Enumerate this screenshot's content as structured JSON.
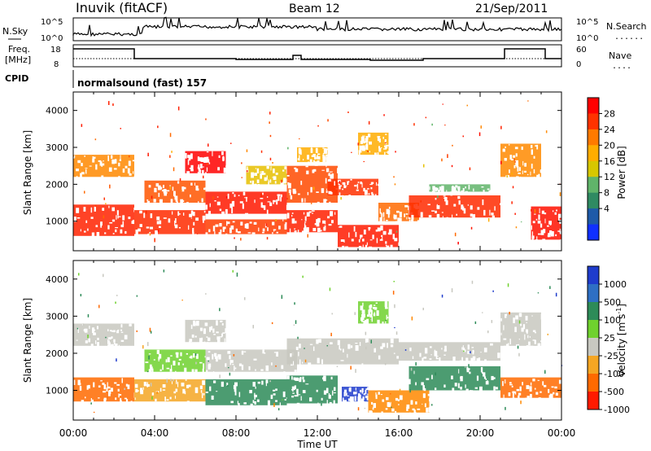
{
  "header": {
    "station": "Inuvik (fitACF)",
    "beam": "Beam 12",
    "date": "21/Sep/2011"
  },
  "strip_labels": {
    "nsky": "N.Sky",
    "nsearch": "N.Search",
    "freq_line1": "Freq.",
    "freq_line2": "[MHz]",
    "nave": "Nave",
    "cpid": "CPID",
    "cpid_value": "normalsound (fast) 157",
    "nsky_ticks": [
      "10^5",
      "10^0"
    ],
    "nsearch_ticks": [
      "10^5",
      "10^0"
    ],
    "freq_ticks": [
      "18",
      "8"
    ],
    "nave_ticks": [
      "60",
      "0"
    ],
    "dotted_legend": "......",
    "dotted_legend_short": "...."
  },
  "chart_data": [
    {
      "type": "heatmap",
      "name": "power",
      "ylabel": "Slant Range [km]",
      "yticks": [
        1000,
        2000,
        3000,
        4000
      ],
      "ylim": [
        200,
        4500
      ],
      "xlim": [
        0,
        24
      ],
      "colorbar": {
        "label": "Power [dB]",
        "ticks": [
          "28",
          "24",
          "20",
          "16",
          "12",
          "8",
          "4"
        ],
        "colors": [
          "#ff0000",
          "#ff3300",
          "#ff7a00",
          "#ffad00",
          "#d7c700",
          "#60b46a",
          "#2f8a62",
          "#1e5aa8",
          "#1030ff"
        ]
      }
    },
    {
      "type": "heatmap",
      "name": "velocity",
      "ylabel": "Slant Range [km]",
      "yticks": [
        1000,
        2000,
        3000,
        4000
      ],
      "ylim": [
        200,
        4500
      ],
      "xlim": [
        0,
        24
      ],
      "xlabel": "Time UT",
      "xticks": [
        "00:00",
        "04:00",
        "08:00",
        "12:00",
        "16:00",
        "20:00",
        "00:00"
      ],
      "colorbar": {
        "label": "Velocity [m s",
        "label_sup": "-1",
        "label_close": "]",
        "ticks": [
          "1000",
          "500",
          "100",
          "25",
          "-25",
          "-100",
          "-500",
          "-1000"
        ],
        "colors": [
          "#1f3ccc",
          "#2e6fc4",
          "#2d8b58",
          "#6fd12e",
          "#c8c8c0",
          "#f5a623",
          "#ff6a00",
          "#ff1a00"
        ]
      }
    }
  ],
  "bands": {
    "power": [
      {
        "t0": 0.0,
        "t1": 3.0,
        "r0": 600,
        "r1": 1450,
        "c": "#ff2200"
      },
      {
        "t0": 0.0,
        "t1": 3.0,
        "r0": 2200,
        "r1": 2800,
        "c": "#ff8800"
      },
      {
        "t0": 3.0,
        "t1": 6.5,
        "r0": 650,
        "r1": 1300,
        "c": "#ff2a00"
      },
      {
        "t0": 3.5,
        "t1": 6.5,
        "r0": 1500,
        "r1": 2100,
        "c": "#ff5500"
      },
      {
        "t0": 5.5,
        "t1": 7.5,
        "r0": 2300,
        "r1": 2900,
        "c": "#ff0000"
      },
      {
        "t0": 6.5,
        "t1": 10.5,
        "r0": 1200,
        "r1": 1800,
        "c": "#ff1800"
      },
      {
        "t0": 6.5,
        "t1": 10.5,
        "r0": 650,
        "r1": 1050,
        "c": "#ff3c00"
      },
      {
        "t0": 8.5,
        "t1": 10.5,
        "r0": 2000,
        "r1": 2500,
        "c": "#e6c000"
      },
      {
        "t0": 10.5,
        "t1": 13.0,
        "r0": 700,
        "r1": 1300,
        "c": "#ff2000"
      },
      {
        "t0": 10.5,
        "t1": 13.0,
        "r0": 1500,
        "r1": 2500,
        "c": "#ff4a00"
      },
      {
        "t0": 11.0,
        "t1": 12.5,
        "r0": 2600,
        "r1": 3000,
        "c": "#ffad00"
      },
      {
        "t0": 12.5,
        "t1": 15.0,
        "r0": 1700,
        "r1": 2150,
        "c": "#ff3000"
      },
      {
        "t0": 13.0,
        "t1": 16.0,
        "r0": 300,
        "r1": 900,
        "c": "#ff1a00"
      },
      {
        "t0": 15.0,
        "t1": 17.0,
        "r0": 1000,
        "r1": 1500,
        "c": "#ff6a00"
      },
      {
        "t0": 14.0,
        "t1": 15.5,
        "r0": 2800,
        "r1": 3400,
        "c": "#ffad00"
      },
      {
        "t0": 16.5,
        "t1": 21.0,
        "r0": 1100,
        "r1": 1700,
        "c": "#ff2a00"
      },
      {
        "t0": 17.5,
        "t1": 20.5,
        "r0": 1800,
        "r1": 2000,
        "c": "#60b46a"
      },
      {
        "t0": 21.0,
        "t1": 23.0,
        "r0": 2200,
        "r1": 3100,
        "c": "#ff8a00"
      },
      {
        "t0": 22.5,
        "t1": 24.0,
        "r0": 500,
        "r1": 1400,
        "c": "#ff1000"
      }
    ],
    "velocity": [
      {
        "t0": 0.0,
        "t1": 3.0,
        "r0": 700,
        "r1": 1350,
        "c": "#ff6a00"
      },
      {
        "t0": 0.0,
        "t1": 3.0,
        "r0": 2200,
        "r1": 2800,
        "c": "#c8c8c0"
      },
      {
        "t0": 3.0,
        "t1": 6.5,
        "r0": 700,
        "r1": 1300,
        "c": "#f5a623"
      },
      {
        "t0": 3.5,
        "t1": 6.5,
        "r0": 1500,
        "r1": 2100,
        "c": "#6fd12e"
      },
      {
        "t0": 5.5,
        "t1": 7.5,
        "r0": 2300,
        "r1": 2900,
        "c": "#c8c8c0"
      },
      {
        "t0": 6.5,
        "t1": 10.5,
        "r0": 600,
        "r1": 1300,
        "c": "#2d8b58"
      },
      {
        "t0": 6.5,
        "t1": 11.0,
        "r0": 1500,
        "r1": 2100,
        "c": "#c8c8c0"
      },
      {
        "t0": 10.5,
        "t1": 13.0,
        "r0": 650,
        "r1": 1400,
        "c": "#2d8b58"
      },
      {
        "t0": 10.5,
        "t1": 16.0,
        "r0": 1700,
        "r1": 2400,
        "c": "#c8c8c0"
      },
      {
        "t0": 13.2,
        "t1": 14.5,
        "r0": 700,
        "r1": 1100,
        "c": "#1f3ccc"
      },
      {
        "t0": 14.5,
        "t1": 17.5,
        "r0": 400,
        "r1": 1000,
        "c": "#ff8800"
      },
      {
        "t0": 14.0,
        "t1": 15.5,
        "r0": 2800,
        "r1": 3400,
        "c": "#6fd12e"
      },
      {
        "t0": 16.5,
        "t1": 21.0,
        "r0": 1000,
        "r1": 1650,
        "c": "#2d8b58"
      },
      {
        "t0": 16.0,
        "t1": 21.0,
        "r0": 1800,
        "r1": 2300,
        "c": "#c8c8c0"
      },
      {
        "t0": 21.0,
        "t1": 23.0,
        "r0": 2200,
        "r1": 3100,
        "c": "#c8c8c0"
      },
      {
        "t0": 21.0,
        "t1": 24.0,
        "r0": 800,
        "r1": 1350,
        "c": "#ff6a00"
      }
    ]
  }
}
